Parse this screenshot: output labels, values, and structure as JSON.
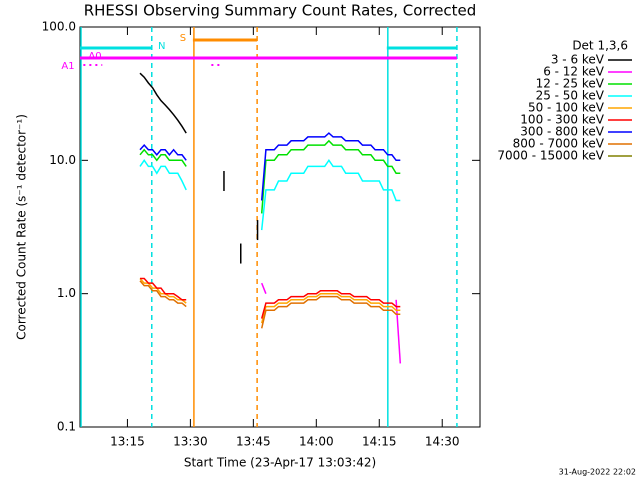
{
  "chart_data": {
    "type": "line",
    "title": "RHESSI Observing Summary Count Rates, Corrected",
    "xlabel": "Start Time (23-Apr-17 13:03:42)",
    "ylabel": "Corrected Count Rate (s⁻¹ detector⁻¹)",
    "footer": "31-Aug-2022 22:02",
    "legend_title": "Det 1,3,6",
    "log_y": true,
    "xlim": [
      3.7,
      99
    ],
    "ylim": [
      0.1,
      100
    ],
    "xticks": [
      {
        "value": 15,
        "label": "13:15"
      },
      {
        "value": 30,
        "label": "13:30"
      },
      {
        "value": 45,
        "label": "13:45"
      },
      {
        "value": 60,
        "label": "14:00"
      },
      {
        "value": 75,
        "label": "14:15"
      },
      {
        "value": 90,
        "label": "14:30"
      }
    ],
    "yticks": [
      0.1,
      {
        "value": 1,
        "label": "1.0"
      },
      {
        "value": 10,
        "label": "10.0"
      },
      {
        "value": 100,
        "label": "100.0"
      }
    ],
    "x": [
      18,
      19,
      20,
      21,
      22,
      23,
      24,
      25,
      26,
      27,
      28,
      29,
      33,
      38,
      40,
      42,
      44,
      46,
      47,
      48,
      49,
      50,
      51,
      52,
      53,
      54,
      55,
      56,
      57,
      58,
      59,
      60,
      61,
      62,
      63,
      64,
      65,
      66,
      67,
      68,
      69,
      70,
      71,
      72,
      73,
      74,
      75,
      76,
      77,
      78,
      79,
      80
    ],
    "series": [
      {
        "name": "3 - 6 keV",
        "color": "#000000",
        "values": [
          45,
          42,
          38,
          35,
          31,
          28,
          26,
          24,
          22,
          20,
          18,
          16,
          null,
          7,
          null,
          2,
          null,
          3,
          null,
          null,
          null,
          null,
          null,
          null,
          null,
          null,
          null,
          null,
          null,
          null,
          null,
          null,
          null,
          null,
          null,
          null,
          null,
          null,
          null,
          null,
          null,
          null,
          null,
          null,
          null,
          null,
          null,
          null,
          null,
          null,
          null,
          null
        ]
      },
      {
        "name": "6 - 12 keV",
        "color": "#ff00ff",
        "values": [
          null,
          null,
          null,
          null,
          null,
          null,
          null,
          null,
          null,
          null,
          null,
          null,
          null,
          null,
          null,
          null,
          null,
          null,
          1.2,
          1.0,
          null,
          null,
          null,
          null,
          null,
          null,
          null,
          null,
          null,
          null,
          null,
          null,
          null,
          null,
          null,
          null,
          null,
          null,
          null,
          null,
          null,
          null,
          null,
          null,
          null,
          null,
          null,
          null,
          null,
          null,
          0.9,
          0.3
        ]
      },
      {
        "name": "12 - 25 keV",
        "color": "#00e000",
        "values": [
          11,
          12,
          11,
          11,
          10,
          11,
          11,
          10,
          10,
          10,
          10,
          9,
          null,
          null,
          null,
          null,
          null,
          null,
          4,
          10,
          10,
          10,
          11,
          11,
          11,
          12,
          12,
          12,
          12,
          13,
          13,
          13,
          13,
          13,
          14,
          13,
          13,
          13,
          12,
          12,
          12,
          12,
          11,
          11,
          11,
          10,
          10,
          10,
          9,
          9,
          8,
          8
        ]
      },
      {
        "name": "25 - 50 keV",
        "color": "#00ffff",
        "values": [
          9,
          10,
          9,
          9,
          8,
          9,
          9,
          8,
          8,
          8,
          7,
          6,
          null,
          null,
          null,
          null,
          null,
          null,
          3,
          6,
          6,
          6,
          7,
          7,
          7,
          8,
          8,
          8,
          8,
          9,
          9,
          9,
          9,
          9,
          10,
          9,
          9,
          9,
          8,
          8,
          8,
          8,
          7,
          7,
          7,
          7,
          7,
          6,
          6,
          6,
          5,
          5
        ]
      },
      {
        "name": "50 - 100 keV",
        "color": "#ffa500",
        "values": [
          1.3,
          1.2,
          1.2,
          1.1,
          1.1,
          1.0,
          1.0,
          0.95,
          0.95,
          0.9,
          0.9,
          0.85,
          null,
          null,
          null,
          null,
          null,
          null,
          0.6,
          0.8,
          0.8,
          0.8,
          0.85,
          0.85,
          0.85,
          0.9,
          0.9,
          0.9,
          0.9,
          0.95,
          0.95,
          0.95,
          1.0,
          1.0,
          1.0,
          1.0,
          1.0,
          0.95,
          0.95,
          0.95,
          0.9,
          0.9,
          0.9,
          0.9,
          0.85,
          0.85,
          0.85,
          0.8,
          0.8,
          0.8,
          0.75,
          0.75
        ]
      },
      {
        "name": "100 - 300 keV",
        "color": "#ff0000",
        "values": [
          1.3,
          1.3,
          1.2,
          1.2,
          1.1,
          1.1,
          1.0,
          1.0,
          1.0,
          0.95,
          0.9,
          0.9,
          null,
          null,
          null,
          null,
          null,
          null,
          0.65,
          0.85,
          0.85,
          0.85,
          0.9,
          0.9,
          0.9,
          0.95,
          0.95,
          0.95,
          0.95,
          1.0,
          1.0,
          1.0,
          1.05,
          1.05,
          1.05,
          1.05,
          1.05,
          1.0,
          1.0,
          1.0,
          0.95,
          0.95,
          0.95,
          0.95,
          0.9,
          0.9,
          0.9,
          0.85,
          0.85,
          0.85,
          0.8,
          0.8
        ]
      },
      {
        "name": "300 - 800 keV",
        "color": "#0000ff",
        "values": [
          12,
          13,
          12,
          12,
          11,
          12,
          12,
          11,
          12,
          11,
          11,
          10,
          null,
          null,
          null,
          null,
          null,
          null,
          5,
          12,
          12,
          12,
          13,
          13,
          13,
          14,
          14,
          14,
          14,
          15,
          15,
          15,
          15,
          15,
          16,
          15,
          15,
          15,
          14,
          14,
          14,
          14,
          13,
          13,
          13,
          12,
          12,
          12,
          11,
          11,
          10,
          10
        ]
      },
      {
        "name": "800 - 7000 keV",
        "color": "#e07000",
        "values": [
          1.25,
          1.15,
          1.15,
          1.05,
          1.05,
          0.95,
          0.95,
          0.9,
          0.9,
          0.85,
          0.85,
          0.8,
          null,
          null,
          null,
          null,
          null,
          null,
          0.55,
          0.75,
          0.75,
          0.75,
          0.8,
          0.8,
          0.8,
          0.85,
          0.85,
          0.85,
          0.85,
          0.9,
          0.9,
          0.9,
          0.95,
          0.95,
          0.95,
          0.95,
          0.95,
          0.9,
          0.9,
          0.9,
          0.85,
          0.85,
          0.85,
          0.85,
          0.8,
          0.8,
          0.8,
          0.75,
          0.75,
          0.75,
          0.7,
          0.7
        ]
      },
      {
        "name": "7000 - 15000 keV",
        "color": "#808000",
        "values": [
          null,
          null,
          null,
          null,
          null,
          null,
          null,
          null,
          null,
          null,
          null,
          null,
          null,
          null,
          null,
          null,
          null,
          null,
          null,
          null,
          null,
          null,
          null,
          null,
          null,
          null,
          null,
          null,
          null,
          null,
          null,
          null,
          null,
          null,
          null,
          null,
          null,
          null,
          null,
          null,
          null,
          null,
          null,
          null,
          null,
          null,
          null,
          null,
          null,
          null,
          null,
          null
        ]
      }
    ],
    "orbit_flags": [
      {
        "label": "N",
        "color": "#00e0e0",
        "spans": [
          [
            3.7,
            20.8
          ],
          [
            76.8,
            93.5
          ]
        ]
      },
      {
        "label": "S",
        "color": "#ff8c00",
        "spans": [
          [
            30.6,
            45.9
          ]
        ]
      }
    ],
    "attenuator_flags": [
      {
        "label": "A1",
        "color": "#ff00ff",
        "spans": [
          [
            3.7,
            93.5
          ]
        ]
      },
      {
        "label": "A0",
        "color": "#ff00ff",
        "spans": [
          [
            4.5,
            9
          ],
          [
            35,
            37.5
          ]
        ]
      }
    ]
  }
}
